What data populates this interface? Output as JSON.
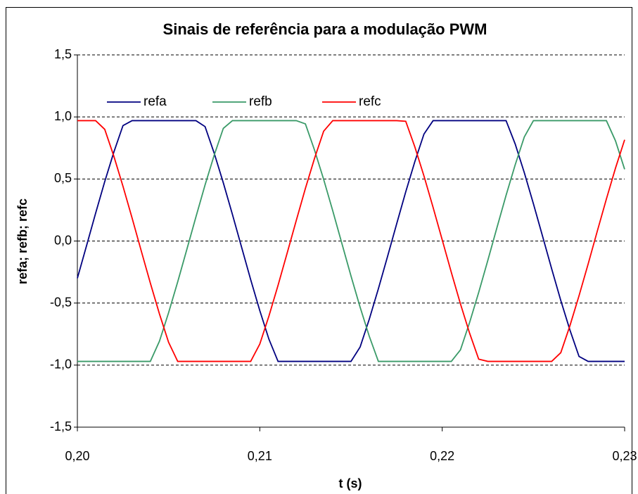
{
  "chart_data": {
    "type": "line",
    "title": "Sinais de referência para a modulação PWM",
    "xlabel": "t (s)",
    "ylabel": "refa; refb; refc",
    "xlim": [
      0.2,
      0.23
    ],
    "xticks": [
      {
        "value": 0.2,
        "label": "0,20"
      },
      {
        "value": 0.21,
        "label": "0,21"
      },
      {
        "value": 0.22,
        "label": "0,22"
      },
      {
        "value": 0.23,
        "label": "0,23"
      }
    ],
    "ylim": [
      -1.5,
      1.5
    ],
    "yticks": [
      {
        "value": -1.5,
        "label": "-1,5"
      },
      {
        "value": -1.0,
        "label": "-1,0"
      },
      {
        "value": -0.5,
        "label": "-0,5"
      },
      {
        "value": 0,
        "label": "0,0"
      },
      {
        "value": 0.5,
        "label": "0,5"
      },
      {
        "value": 1.0,
        "label": "1,0"
      },
      {
        "value": 1.5,
        "label": "1,5"
      }
    ],
    "grid": true,
    "legend": "top",
    "x": [
      0.2,
      0.2005,
      0.201,
      0.2015,
      0.202,
      0.2025,
      0.203,
      0.2035,
      0.204,
      0.2045,
      0.205,
      0.2055,
      0.206,
      0.2065,
      0.207,
      0.2075,
      0.208,
      0.2085,
      0.209,
      0.2095,
      0.21,
      0.2105,
      0.211,
      0.2115,
      0.212,
      0.2125,
      0.213,
      0.2135,
      0.214,
      0.2145,
      0.215,
      0.2155,
      0.216,
      0.2165,
      0.217,
      0.2175,
      0.218,
      0.2185,
      0.219,
      0.2195,
      0.22,
      0.2205,
      0.221,
      0.2215,
      0.222,
      0.2225,
      0.223,
      0.2235,
      0.224,
      0.2245,
      0.225,
      0.2255,
      0.226,
      0.2265,
      0.227,
      0.2275,
      0.228,
      0.2285,
      0.229,
      0.2295,
      0.23
    ],
    "series": [
      {
        "name": "refa",
        "color": "#000080",
        "values": [
          -0.3,
          -0.039,
          0.224,
          0.479,
          0.717,
          0.93,
          0.97,
          0.97,
          0.97,
          0.97,
          0.97,
          0.97,
          0.97,
          0.97,
          0.922,
          0.708,
          0.469,
          0.214,
          -0.049,
          -0.311,
          -0.561,
          -0.791,
          -0.97,
          -0.97,
          -0.97,
          -0.97,
          -0.97,
          -0.97,
          -0.97,
          -0.97,
          -0.97,
          -0.854,
          -0.631,
          -0.385,
          -0.126,
          0.137,
          0.396,
          0.64,
          0.862,
          0.97,
          0.97,
          0.97,
          0.97,
          0.97,
          0.97,
          0.97,
          0.97,
          0.97,
          0.782,
          0.551,
          0.3,
          0.039,
          -0.224,
          -0.479,
          -0.717,
          -0.93,
          -0.97,
          -0.97,
          -0.97,
          -0.97,
          -0.97
        ]
      },
      {
        "name": "refb",
        "color": "#3a9a68",
        "values": [
          -0.97,
          -0.97,
          -0.97,
          -0.97,
          -0.97,
          -0.97,
          -0.97,
          -0.97,
          -0.97,
          -0.807,
          -0.578,
          -0.329,
          -0.068,
          0.195,
          0.452,
          0.692,
          0.908,
          0.97,
          0.97,
          0.97,
          0.97,
          0.97,
          0.97,
          0.97,
          0.97,
          0.944,
          0.733,
          0.497,
          0.243,
          -0.02,
          -0.282,
          -0.534,
          -0.767,
          -0.97,
          -0.97,
          -0.97,
          -0.97,
          -0.97,
          -0.97,
          -0.97,
          -0.97,
          -0.97,
          -0.877,
          -0.657,
          -0.414,
          -0.156,
          0.108,
          0.368,
          0.614,
          0.839,
          0.97,
          0.97,
          0.97,
          0.97,
          0.97,
          0.97,
          0.97,
          0.97,
          0.97,
          0.807,
          0.578
        ]
      },
      {
        "name": "refc",
        "color": "#ff0000",
        "values": [
          0.97,
          0.97,
          0.97,
          0.9,
          0.683,
          0.441,
          0.185,
          -0.079,
          -0.339,
          -0.588,
          -0.816,
          -0.97,
          -0.97,
          -0.97,
          -0.97,
          -0.97,
          -0.97,
          -0.97,
          -0.97,
          -0.97,
          -0.83,
          -0.605,
          -0.357,
          -0.097,
          0.166,
          0.424,
          0.666,
          0.885,
          0.97,
          0.97,
          0.97,
          0.97,
          0.97,
          0.97,
          0.97,
          0.97,
          0.965,
          0.758,
          0.524,
          0.271,
          0.009,
          -0.253,
          -0.507,
          -0.742,
          -0.952,
          -0.97,
          -0.97,
          -0.97,
          -0.97,
          -0.97,
          -0.97,
          -0.97,
          -0.97,
          -0.9,
          -0.683,
          -0.441,
          -0.185,
          0.079,
          0.339,
          0.588,
          0.816
        ]
      }
    ]
  }
}
